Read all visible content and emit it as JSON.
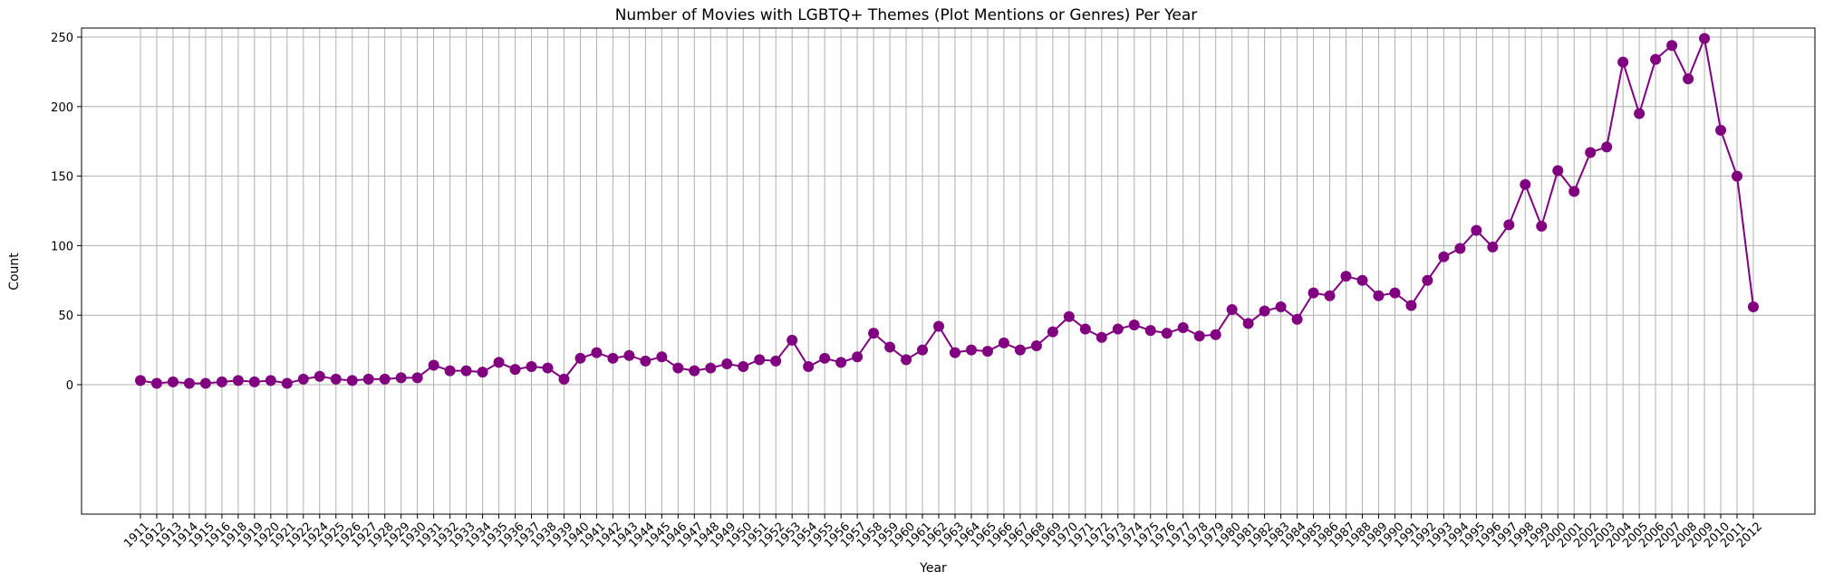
{
  "chart_data": {
    "type": "line",
    "title": "Number of Movies with LGBTQ+ Themes (Plot Mentions or Genres) Per Year",
    "xlabel": "Year",
    "ylabel": "Count",
    "x": [
      1911,
      1912,
      1913,
      1914,
      1915,
      1916,
      1918,
      1919,
      1920,
      1921,
      1922,
      1924,
      1925,
      1926,
      1927,
      1928,
      1929,
      1930,
      1931,
      1932,
      1933,
      1934,
      1935,
      1936,
      1937,
      1938,
      1939,
      1940,
      1941,
      1942,
      1943,
      1944,
      1945,
      1946,
      1947,
      1948,
      1949,
      1950,
      1951,
      1952,
      1953,
      1954,
      1955,
      1956,
      1957,
      1958,
      1959,
      1960,
      1961,
      1962,
      1963,
      1964,
      1965,
      1966,
      1967,
      1968,
      1969,
      1970,
      1971,
      1972,
      1973,
      1974,
      1975,
      1976,
      1977,
      1978,
      1979,
      1980,
      1981,
      1982,
      1983,
      1984,
      1985,
      1986,
      1987,
      1988,
      1989,
      1990,
      1991,
      1992,
      1993,
      1994,
      1995,
      1996,
      1997,
      1998,
      1999,
      2000,
      2001,
      2002,
      2003,
      2004,
      2005,
      2006,
      2007,
      2008,
      2009,
      2010,
      2011,
      2012
    ],
    "series": [
      {
        "values": [
          3,
          1,
          2,
          1,
          1,
          2,
          3,
          2,
          3,
          1,
          4,
          6,
          4,
          3,
          4,
          4,
          5,
          5,
          14,
          10,
          10,
          9,
          16,
          11,
          13,
          12,
          4,
          19,
          23,
          19,
          21,
          17,
          20,
          12,
          10,
          12,
          15,
          13,
          18,
          17,
          32,
          13,
          19,
          16,
          20,
          37,
          27,
          18,
          25,
          42,
          23,
          25,
          24,
          30,
          25,
          28,
          38,
          49,
          40,
          34,
          40,
          43,
          39,
          37,
          41,
          35,
          36,
          54,
          44,
          53,
          56,
          47,
          66,
          64,
          78,
          75,
          64,
          66,
          57,
          75,
          92,
          98,
          111,
          99,
          115,
          144,
          114,
          154,
          139,
          167,
          171,
          232,
          195,
          234,
          244,
          220,
          249,
          183,
          150,
          56
        ],
        "color": "#800080"
      }
    ],
    "ylim": [
      0,
      250
    ],
    "yticks": [
      0,
      50,
      100,
      150,
      200,
      250
    ],
    "grid": true,
    "marker": "circle"
  }
}
